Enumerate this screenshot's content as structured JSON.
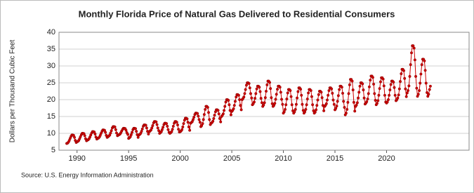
{
  "chart_data": {
    "type": "line",
    "title": "Monthly Florida Price of Natural Gas Delivered to Residential Consumers",
    "y_label": "Dollars per Thousand Cubic Feet",
    "source": "Source: U.S. Energy Information Administration",
    "xlim": [
      1988.25,
      2028
    ],
    "xticks": [
      1990,
      1995,
      2000,
      2005,
      2010,
      2015,
      2020
    ],
    "ylim": [
      5,
      40
    ],
    "yticks": [
      5,
      10,
      15,
      20,
      25,
      30,
      35,
      40
    ],
    "grid": true,
    "x": [
      1989,
      1989.08,
      1989.17,
      1989.25,
      1989.33,
      1989.42,
      1989.5,
      1989.58,
      1989.67,
      1989.75,
      1989.83,
      1989.92,
      1990,
      1990.08,
      1990.17,
      1990.25,
      1990.33,
      1990.42,
      1990.5,
      1990.58,
      1990.67,
      1990.75,
      1990.83,
      1990.92,
      1991,
      1991.08,
      1991.17,
      1991.25,
      1991.33,
      1991.42,
      1991.5,
      1991.58,
      1991.67,
      1991.75,
      1991.83,
      1991.92,
      1992,
      1992.08,
      1992.17,
      1992.25,
      1992.33,
      1992.42,
      1992.5,
      1992.58,
      1992.67,
      1992.75,
      1992.83,
      1992.92,
      1993,
      1993.08,
      1993.17,
      1993.25,
      1993.33,
      1993.42,
      1993.5,
      1993.58,
      1993.67,
      1993.75,
      1993.83,
      1993.92,
      1994,
      1994.08,
      1994.17,
      1994.25,
      1994.33,
      1994.42,
      1994.5,
      1994.58,
      1994.67,
      1994.75,
      1994.83,
      1994.92,
      1995,
      1995.08,
      1995.17,
      1995.25,
      1995.33,
      1995.42,
      1995.5,
      1995.58,
      1995.67,
      1995.75,
      1995.83,
      1995.92,
      1996,
      1996.08,
      1996.17,
      1996.25,
      1996.33,
      1996.42,
      1996.5,
      1996.58,
      1996.67,
      1996.75,
      1996.83,
      1996.92,
      1997,
      1997.08,
      1997.17,
      1997.25,
      1997.33,
      1997.42,
      1997.5,
      1997.58,
      1997.67,
      1997.75,
      1997.83,
      1997.92,
      1998,
      1998.08,
      1998.17,
      1998.25,
      1998.33,
      1998.42,
      1998.5,
      1998.58,
      1998.67,
      1998.75,
      1998.83,
      1998.92,
      1999,
      1999.08,
      1999.17,
      1999.25,
      1999.33,
      1999.42,
      1999.5,
      1999.58,
      1999.67,
      1999.75,
      1999.83,
      1999.92,
      2000,
      2000.08,
      2000.17,
      2000.25,
      2000.33,
      2000.42,
      2000.5,
      2000.58,
      2000.67,
      2000.75,
      2000.83,
      2000.92,
      2001,
      2001.08,
      2001.17,
      2001.25,
      2001.33,
      2001.42,
      2001.5,
      2001.58,
      2001.67,
      2001.75,
      2001.83,
      2001.92,
      2002,
      2002.08,
      2002.17,
      2002.25,
      2002.33,
      2002.42,
      2002.5,
      2002.58,
      2002.67,
      2002.75,
      2002.83,
      2002.92,
      2003,
      2003.08,
      2003.17,
      2003.25,
      2003.33,
      2003.42,
      2003.5,
      2003.58,
      2003.67,
      2003.75,
      2003.83,
      2003.92,
      2004,
      2004.08,
      2004.17,
      2004.25,
      2004.33,
      2004.42,
      2004.5,
      2004.58,
      2004.67,
      2004.75,
      2004.83,
      2004.92,
      2005,
      2005.08,
      2005.17,
      2005.25,
      2005.33,
      2005.42,
      2005.5,
      2005.58,
      2005.67,
      2005.75,
      2005.83,
      2005.92,
      2006,
      2006.08,
      2006.17,
      2006.25,
      2006.33,
      2006.42,
      2006.5,
      2006.58,
      2006.67,
      2006.75,
      2006.83,
      2006.92,
      2007,
      2007.08,
      2007.17,
      2007.25,
      2007.33,
      2007.42,
      2007.5,
      2007.58,
      2007.67,
      2007.75,
      2007.83,
      2007.92,
      2008,
      2008.08,
      2008.17,
      2008.25,
      2008.33,
      2008.42,
      2008.5,
      2008.58,
      2008.67,
      2008.75,
      2008.83,
      2008.92,
      2009,
      2009.08,
      2009.17,
      2009.25,
      2009.33,
      2009.42,
      2009.5,
      2009.58,
      2009.67,
      2009.75,
      2009.83,
      2009.92,
      2010,
      2010.08,
      2010.17,
      2010.25,
      2010.33,
      2010.42,
      2010.5,
      2010.58,
      2010.67,
      2010.75,
      2010.83,
      2010.92,
      2011,
      2011.08,
      2011.17,
      2011.25,
      2011.33,
      2011.42,
      2011.5,
      2011.58,
      2011.67,
      2011.75,
      2011.83,
      2011.92,
      2012,
      2012.08,
      2012.17,
      2012.25,
      2012.33,
      2012.42,
      2012.5,
      2012.58,
      2012.67,
      2012.75,
      2012.83,
      2012.92,
      2013,
      2013.08,
      2013.17,
      2013.25,
      2013.33,
      2013.42,
      2013.5,
      2013.58,
      2013.67,
      2013.75,
      2013.83,
      2013.92,
      2014,
      2014.08,
      2014.17,
      2014.25,
      2014.33,
      2014.42,
      2014.5,
      2014.58,
      2014.67,
      2014.75,
      2014.83,
      2014.92,
      2015,
      2015.08,
      2015.17,
      2015.25,
      2015.33,
      2015.42,
      2015.5,
      2015.58,
      2015.67,
      2015.75,
      2015.83,
      2015.92,
      2016,
      2016.08,
      2016.17,
      2016.25,
      2016.33,
      2016.42,
      2016.5,
      2016.58,
      2016.67,
      2016.75,
      2016.83,
      2016.92,
      2017,
      2017.08,
      2017.17,
      2017.25,
      2017.33,
      2017.42,
      2017.5,
      2017.58,
      2017.67,
      2017.75,
      2017.83,
      2017.92,
      2018,
      2018.08,
      2018.17,
      2018.25,
      2018.33,
      2018.42,
      2018.5,
      2018.58,
      2018.67,
      2018.75,
      2018.83,
      2018.92,
      2019,
      2019.08,
      2019.17,
      2019.25,
      2019.33,
      2019.42,
      2019.5,
      2019.58,
      2019.67,
      2019.75,
      2019.83,
      2019.92,
      2020,
      2020.08,
      2020.17,
      2020.25,
      2020.33,
      2020.42,
      2020.5,
      2020.58,
      2020.67,
      2020.75,
      2020.83,
      2020.92,
      2021,
      2021.08,
      2021.17,
      2021.25,
      2021.33,
      2021.42,
      2021.5,
      2021.58,
      2021.67,
      2021.75,
      2021.83,
      2021.92,
      2022,
      2022.08,
      2022.17,
      2022.25,
      2022.33,
      2022.42,
      2022.5,
      2022.58,
      2022.67,
      2022.75,
      2022.83,
      2022.92,
      2023,
      2023.08,
      2023.17,
      2023.25,
      2023.33,
      2023.42,
      2023.5,
      2023.58,
      2023.67,
      2023.75,
      2023.83,
      2023.92,
      2024,
      2024.08,
      2024.17,
      2024.25
    ],
    "series": [
      {
        "color": "#cc0000",
        "values": [
          7,
          7.1,
          7.4,
          7.9,
          8.5,
          9.1,
          9.5,
          9.5,
          9.4,
          8.8,
          7.9,
          7.3,
          7.5,
          7.6,
          7.9,
          8.4,
          9,
          9.6,
          10,
          10,
          9.9,
          9.3,
          8.4,
          7.8,
          8,
          8.1,
          8.4,
          8.9,
          9.5,
          10.1,
          10.5,
          10.5,
          10.4,
          9.8,
          8.9,
          8.3,
          8.5,
          8.6,
          8.9,
          9.4,
          10,
          10.6,
          11,
          11,
          10.9,
          10.3,
          9.4,
          8.8,
          9,
          9.2,
          9.5,
          10.1,
          10.8,
          11.6,
          12,
          12,
          11.9,
          11.1,
          10.1,
          9.3,
          9.5,
          9.6,
          9.8,
          10.2,
          10.7,
          11.2,
          11.5,
          11.5,
          11.4,
          10.9,
          10.2,
          9.7,
          8.5,
          8.7,
          9,
          9.6,
          10.3,
          11.1,
          11.5,
          11.5,
          11.4,
          10.6,
          9.6,
          8.8,
          9.5,
          9.7,
          10,
          10.6,
          11.3,
          12.1,
          12.5,
          12.5,
          12.4,
          11.6,
          10.6,
          9.8,
          10.5,
          10.7,
          11,
          11.6,
          12.3,
          13.1,
          13.5,
          13.5,
          13.4,
          12.6,
          11.6,
          10.8,
          10,
          10.2,
          10.5,
          11.1,
          11.8,
          12.6,
          13,
          13,
          12.9,
          12.1,
          11.1,
          10.3,
          10,
          10.2,
          10.5,
          11.2,
          12.1,
          13,
          13.5,
          13.5,
          13.3,
          12.5,
          11.2,
          10.4,
          10.5,
          10.7,
          11.1,
          11.9,
          12.9,
          13.9,
          14.5,
          14.5,
          14.3,
          13.3,
          11.9,
          10.9,
          13,
          13.2,
          13.5,
          14.1,
          14.8,
          15.6,
          16,
          16,
          15.9,
          15.1,
          14.1,
          13.3,
          12,
          12.3,
          12.9,
          14.1,
          15.6,
          17.1,
          18,
          18,
          17.7,
          16.2,
          14.1,
          12.6,
          13,
          13.2,
          13.6,
          14.4,
          15.4,
          16.4,
          17,
          17,
          16.8,
          15.8,
          14.4,
          13.4,
          15,
          15.3,
          15.8,
          16.8,
          18,
          19.3,
          20,
          20,
          19.8,
          18.5,
          16.8,
          15.5,
          16.5,
          16.8,
          17.3,
          18.3,
          19.5,
          20.8,
          21.5,
          21.5,
          21.3,
          20,
          18.3,
          17,
          20,
          20.3,
          20.8,
          21.8,
          23,
          24.3,
          25,
          25,
          24.8,
          23.5,
          21.8,
          20.5,
          18.5,
          18.8,
          19.3,
          20.4,
          21.8,
          23.2,
          24,
          24,
          23.7,
          22.4,
          20.4,
          19.1,
          18,
          18.4,
          19.1,
          20.6,
          22.5,
          24.4,
          25.5,
          25.5,
          25.1,
          23.3,
          20.6,
          18.8,
          18,
          18.3,
          18.9,
          20.1,
          21.6,
          23.1,
          24,
          24,
          23.7,
          22.2,
          20.1,
          18.6,
          16,
          16.4,
          17.1,
          18.5,
          20.2,
          22,
          23,
          23,
          22.7,
          20.9,
          18.5,
          16.7,
          16,
          16.4,
          17.1,
          18.6,
          20.5,
          22.4,
          23.5,
          23.5,
          23.1,
          21.3,
          18.6,
          16.8,
          16,
          16.4,
          17.1,
          18.5,
          20.2,
          22,
          23,
          23,
          22.7,
          20.9,
          18.5,
          16.7,
          16,
          16.3,
          17,
          18.3,
          19.9,
          21.5,
          22.5,
          22.5,
          22.2,
          20.6,
          18.3,
          16.7,
          18,
          18.3,
          18.8,
          19.9,
          21.3,
          22.7,
          23.5,
          23.5,
          23.2,
          21.9,
          19.9,
          18.6,
          17,
          17.4,
          18.1,
          19.5,
          21.2,
          23,
          24,
          24,
          23.7,
          21.9,
          19.5,
          17.7,
          15.5,
          16,
          17.1,
          19.2,
          21.8,
          24.4,
          26,
          26,
          25.5,
          22.9,
          19.2,
          16.6,
          18,
          18.4,
          19.1,
          20.5,
          22.2,
          24,
          25,
          25,
          24.7,
          22.9,
          20.5,
          18.7,
          19,
          19.4,
          20.2,
          21.8,
          23.8,
          25.8,
          27,
          27,
          26.6,
          24.6,
          21.8,
          19.8,
          18.5,
          18.9,
          19.7,
          21.3,
          23.3,
          25.3,
          26.5,
          26.5,
          26.1,
          24.1,
          21.3,
          19.3,
          19,
          19.3,
          20,
          21.3,
          22.9,
          24.5,
          25.5,
          25.5,
          25.2,
          23.6,
          21.3,
          19.7,
          20,
          20.5,
          21.4,
          23.2,
          25.4,
          27.7,
          29,
          29,
          28.6,
          26.3,
          23.2,
          20.9,
          22,
          22.7,
          24.1,
          26.9,
          30.4,
          33.9,
          36,
          36,
          35.3,
          31.8,
          26.9,
          23.4,
          21,
          21.6,
          22.7,
          24.9,
          27.6,
          30.4,
          32,
          32,
          31.5,
          28.7,
          24.9,
          22.1,
          21,
          21.6,
          23,
          24
        ]
      }
    ]
  }
}
